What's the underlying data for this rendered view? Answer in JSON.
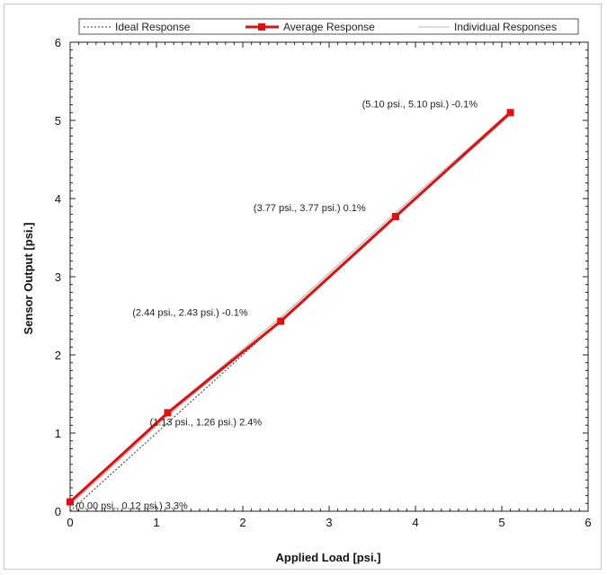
{
  "chart_data": {
    "type": "line",
    "xlabel": "Applied Load [psi.]",
    "ylabel": "Sensor Output [psi.]",
    "xlim": [
      0,
      6
    ],
    "ylim": [
      0,
      6
    ],
    "xticks": [
      "0",
      "1",
      "2",
      "3",
      "4",
      "5",
      "6"
    ],
    "yticks": [
      "0",
      "1",
      "2",
      "3",
      "4",
      "5",
      "6"
    ],
    "grid": false,
    "legend_position": "top",
    "legend": [
      "Ideal Response",
      "Average Response",
      "Individual Responses"
    ],
    "series": [
      {
        "name": "Ideal Response",
        "style": "dotted",
        "color": "#333333",
        "x": [
          0,
          5.1
        ],
        "y": [
          0,
          5.1
        ]
      },
      {
        "name": "Average Response",
        "style": "solid-markers",
        "color": "#dd1111",
        "x": [
          0.0,
          1.13,
          2.44,
          3.77,
          5.1
        ],
        "y": [
          0.12,
          1.26,
          2.43,
          3.77,
          5.1
        ]
      },
      {
        "name": "Individual Responses",
        "style": "thin",
        "color": "#bbbbbb",
        "x": [
          0.0,
          1.13,
          2.44,
          3.77,
          5.1
        ],
        "y": [
          0.1,
          1.24,
          2.45,
          3.79,
          5.09
        ]
      }
    ],
    "annotations": [
      {
        "text": "(0.00 psi., 0.12 psi.) 3.3%",
        "x": 0.0,
        "y": 0.12
      },
      {
        "text": "(1.13 psi., 1.26 psi.) 2.4%",
        "x": 1.13,
        "y": 1.26
      },
      {
        "text": "(2.44 psi., 2.43 psi.) -0.1%",
        "x": 2.44,
        "y": 2.43
      },
      {
        "text": "(3.77 psi., 3.77 psi.) 0.1%",
        "x": 3.77,
        "y": 3.77
      },
      {
        "text": "(5.10 psi., 5.10 psi.) -0.1%",
        "x": 5.1,
        "y": 5.1
      }
    ]
  }
}
